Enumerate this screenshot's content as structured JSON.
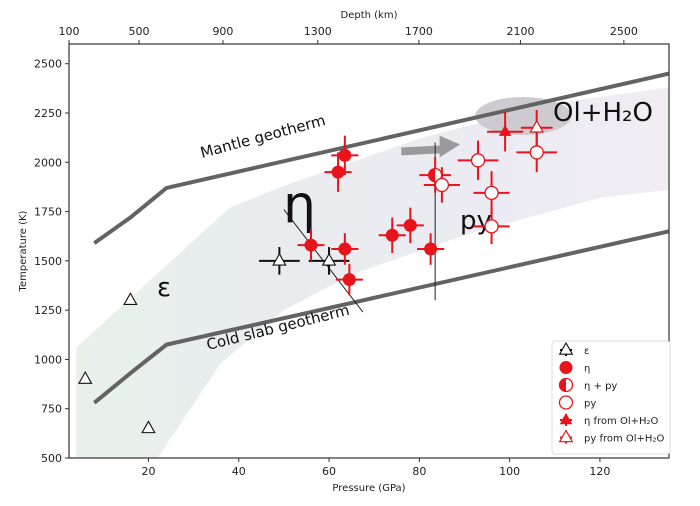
{
  "chart_data": {
    "type": "scatter",
    "title": "",
    "xlabel": "Pressure (GPa)",
    "ylabel": "Temperature (K)",
    "top_xlabel": "Depth (km)",
    "xlim": [
      2.4,
      135.3
    ],
    "ylim": [
      500,
      2600
    ],
    "xticks": [
      20,
      40,
      60,
      80,
      100,
      120
    ],
    "yticks": [
      500,
      750,
      1000,
      1250,
      1500,
      1750,
      2000,
      2250,
      2500
    ],
    "top_ticks": [
      {
        "label": "100",
        "p": 2.4
      },
      {
        "label": "500",
        "p": 17.9
      },
      {
        "label": "900",
        "p": 36.5
      },
      {
        "label": "1300",
        "p": 57.5
      },
      {
        "label": "1700",
        "p": 79.9
      },
      {
        "label": "2100",
        "p": 102.4
      },
      {
        "label": "2500",
        "p": 125.3
      }
    ],
    "grid": false,
    "annotations": {
      "epsilon": "ε",
      "eta": "η",
      "py": "py",
      "ol_h2o": "Ol+H₂O",
      "mantle": "Mantle geotherm",
      "cold_slab": "Cold slab geotherm"
    },
    "curves": {
      "mantle_geotherm": [
        [
          8,
          1590
        ],
        [
          16,
          1720
        ],
        [
          24,
          1870
        ],
        [
          135.3,
          2450
        ]
      ],
      "cold_slab_geotherm": [
        [
          8,
          780
        ],
        [
          16,
          930
        ],
        [
          24,
          1075
        ],
        [
          135.3,
          1650
        ]
      ]
    },
    "series": [
      {
        "name": "ε",
        "marker": "open-triangle-black",
        "points": [
          [
            6,
            900
          ],
          [
            16,
            1300
          ],
          [
            20,
            650
          ],
          [
            49,
            1500
          ],
          [
            60,
            1500
          ]
        ],
        "xerr": [
          0,
          0,
          0,
          4.5,
          4.5
        ],
        "yerr": [
          0,
          0,
          0,
          70,
          70
        ]
      },
      {
        "name": "η",
        "marker": "filled-circle",
        "points": [
          [
            56,
            1580
          ],
          [
            62,
            1950
          ],
          [
            63.5,
            2035
          ],
          [
            63.5,
            1560
          ],
          [
            64.5,
            1405
          ],
          [
            74,
            1630
          ],
          [
            78,
            1680
          ],
          [
            82.5,
            1560
          ]
        ],
        "xerr": [
          3,
          3,
          3,
          3,
          3,
          3,
          3,
          3
        ],
        "yerr": [
          80,
          100,
          100,
          80,
          80,
          90,
          90,
          80
        ]
      },
      {
        "name": "η + py",
        "marker": "half-circle",
        "points": [
          [
            83.5,
            1935
          ]
        ],
        "xerr": [
          3.5
        ],
        "yerr": [
          90
        ]
      },
      {
        "name": "py",
        "marker": "open-circle",
        "points": [
          [
            85,
            1885
          ],
          [
            93,
            2010
          ],
          [
            96,
            1845
          ],
          [
            96,
            1675
          ],
          [
            106,
            2050
          ]
        ],
        "xerr": [
          4,
          4.5,
          4,
          4,
          4.5
        ],
        "yerr": [
          90,
          100,
          110,
          90,
          100
        ]
      },
      {
        "name": "η from Ol+H₂O",
        "marker": "filled-triangle",
        "points": [
          [
            99,
            2155
          ]
        ],
        "xerr": [
          4
        ],
        "yerr": [
          100
        ]
      },
      {
        "name": "py from Ol+H₂O",
        "marker": "open-triangle-red",
        "points": [
          [
            106,
            2175
          ]
        ],
        "xerr": [
          3.5
        ],
        "yerr": [
          90
        ]
      }
    ],
    "legend": {
      "placement": "lower-right",
      "entries": [
        "ε",
        "η",
        "η + py",
        "py",
        "η from Ol+H₂O",
        "py from Ol+H₂O"
      ]
    }
  },
  "colors": {
    "red": "#e8131b",
    "geotherm": "#636363"
  }
}
